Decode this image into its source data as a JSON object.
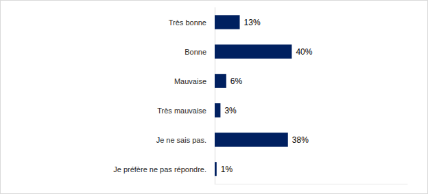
{
  "chart_data": {
    "type": "bar",
    "orientation": "horizontal",
    "categories": [
      "Très bonne",
      "Bonne",
      "Mauvaise",
      "Très mauvaise",
      "Je ne sais pas.",
      "Je préfère ne pas répondre."
    ],
    "values": [
      13,
      40,
      6,
      3,
      38,
      1
    ],
    "value_labels": [
      "13%",
      "40%",
      "6%",
      "3%",
      "38%",
      "1%"
    ],
    "color": "#002060",
    "xlim": [
      0,
      100
    ],
    "data_labels": true,
    "tick_labels": "y",
    "grid": false
  }
}
